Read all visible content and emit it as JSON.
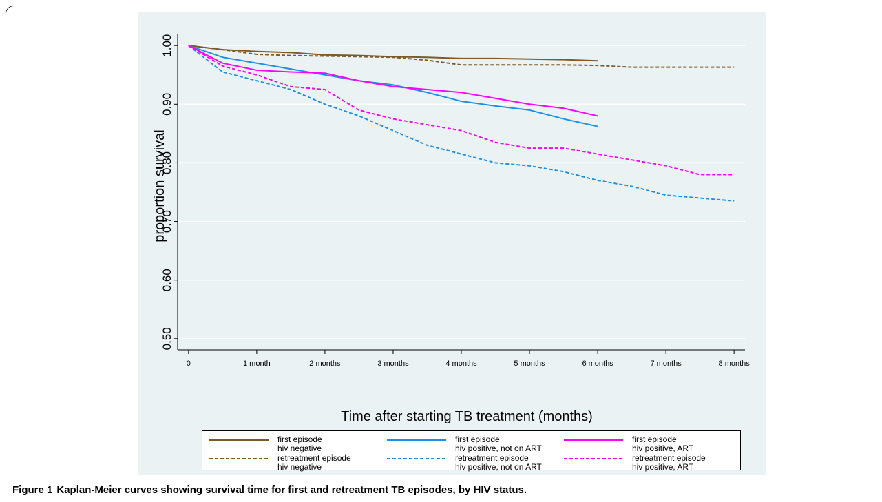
{
  "chart_data": {
    "type": "line",
    "x_label": "Time after starting TB treatment (months)",
    "y_label": "proportion survival",
    "x": [
      0,
      0.5,
      1,
      1.5,
      2,
      2.5,
      3,
      3.5,
      4,
      4.5,
      5,
      5.5,
      6,
      6.5,
      7,
      7.5,
      8
    ],
    "series": [
      {
        "name": "first episode\nhiv negative",
        "color": "#7d5a2a",
        "line_style": "solid",
        "values": [
          1,
          0.993,
          0.99,
          0.988,
          0.984,
          0.983,
          0.981,
          0.98,
          0.978,
          0.978,
          0.977,
          0.976,
          0.974,
          null,
          null,
          null,
          null
        ]
      },
      {
        "name": "retreatment episode\nhiv negative",
        "color": "#7d5a2a",
        "line_style": "dashed",
        "values": [
          1,
          0.993,
          0.985,
          0.983,
          0.982,
          0.981,
          0.98,
          0.975,
          0.967,
          0.967,
          0.967,
          0.967,
          0.966,
          0.963,
          0.963,
          0.963,
          0.963
        ]
      },
      {
        "name": "first episode\nhiv positive, not on ART",
        "color": "#1e8fe6",
        "line_style": "solid",
        "values": [
          1,
          0.98,
          0.97,
          0.96,
          0.95,
          0.94,
          0.933,
          0.92,
          0.905,
          0.897,
          0.89,
          0.875,
          0.862,
          null,
          null,
          null,
          null
        ]
      },
      {
        "name": "retreatment episode\nhiv positive, not on ART",
        "color": "#1e8fe6",
        "line_style": "dashed",
        "values": [
          1,
          0.955,
          0.94,
          0.925,
          0.9,
          0.88,
          0.855,
          0.83,
          0.815,
          0.8,
          0.795,
          0.785,
          0.77,
          0.76,
          0.745,
          0.74,
          0.735
        ]
      },
      {
        "name": "first episode\nhiv positive, ART",
        "color": "#ff00ff",
        "line_style": "solid",
        "values": [
          1,
          0.97,
          0.958,
          0.955,
          0.953,
          0.94,
          0.93,
          0.925,
          0.92,
          0.91,
          0.9,
          0.893,
          0.88,
          null,
          null,
          null,
          null
        ]
      },
      {
        "name": "retreatment episode\nhiv positive, ART",
        "color": "#ff00ff",
        "line_style": "dashed",
        "values": [
          1,
          0.965,
          0.95,
          0.93,
          0.925,
          0.89,
          0.875,
          0.865,
          0.855,
          0.835,
          0.825,
          0.825,
          0.815,
          0.805,
          0.795,
          0.78,
          0.78
        ]
      }
    ],
    "xlim": [
      -0.16,
      8.16
    ],
    "ylim": [
      0.481,
      1.019
    ],
    "xticks": [
      0,
      {
        "value": 1,
        "label": "1 month"
      },
      {
        "value": 2,
        "label": "2 months"
      },
      {
        "value": 3,
        "label": "3 months"
      },
      {
        "value": 4,
        "label": "4 months"
      },
      {
        "value": 5,
        "label": "5 months"
      },
      {
        "value": 6,
        "label": "6 months"
      },
      {
        "value": 7,
        "label": "7 months"
      },
      {
        "value": 8,
        "label": "8 months"
      }
    ],
    "yticks": [
      {
        "value": 0.5,
        "label": "0.50"
      },
      {
        "value": 0.6,
        "label": "0.60"
      },
      {
        "value": 0.7,
        "label": "0.70"
      },
      {
        "value": 0.8,
        "label": "0.80"
      },
      {
        "value": 0.9,
        "label": "0.90"
      },
      {
        "value": 1,
        "label": "1.00"
      }
    ],
    "grid": true,
    "legend_position": "bottom",
    "caption_label": "Figure 1",
    "caption": "Kaplan-Meier curves showing survival time for first and retreatment TB episodes, by HIV status."
  }
}
